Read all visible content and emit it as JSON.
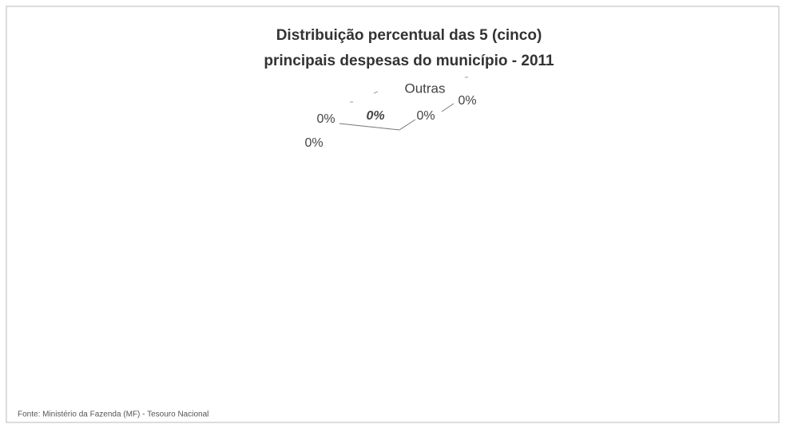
{
  "chart_data": {
    "type": "pie",
    "title": [
      "Distribuição percentual das 5 (cinco)",
      "principais despesas do município - 2011"
    ],
    "categories": [
      null,
      null,
      null,
      "Outras",
      null
    ],
    "values": [
      0,
      0,
      0,
      0,
      0
    ],
    "value_labels": [
      "0%",
      "0%",
      "0%",
      "0%",
      "0%"
    ],
    "source": "Fonte: Ministério da Fazenda (MF) - Tesouro Nacional"
  }
}
